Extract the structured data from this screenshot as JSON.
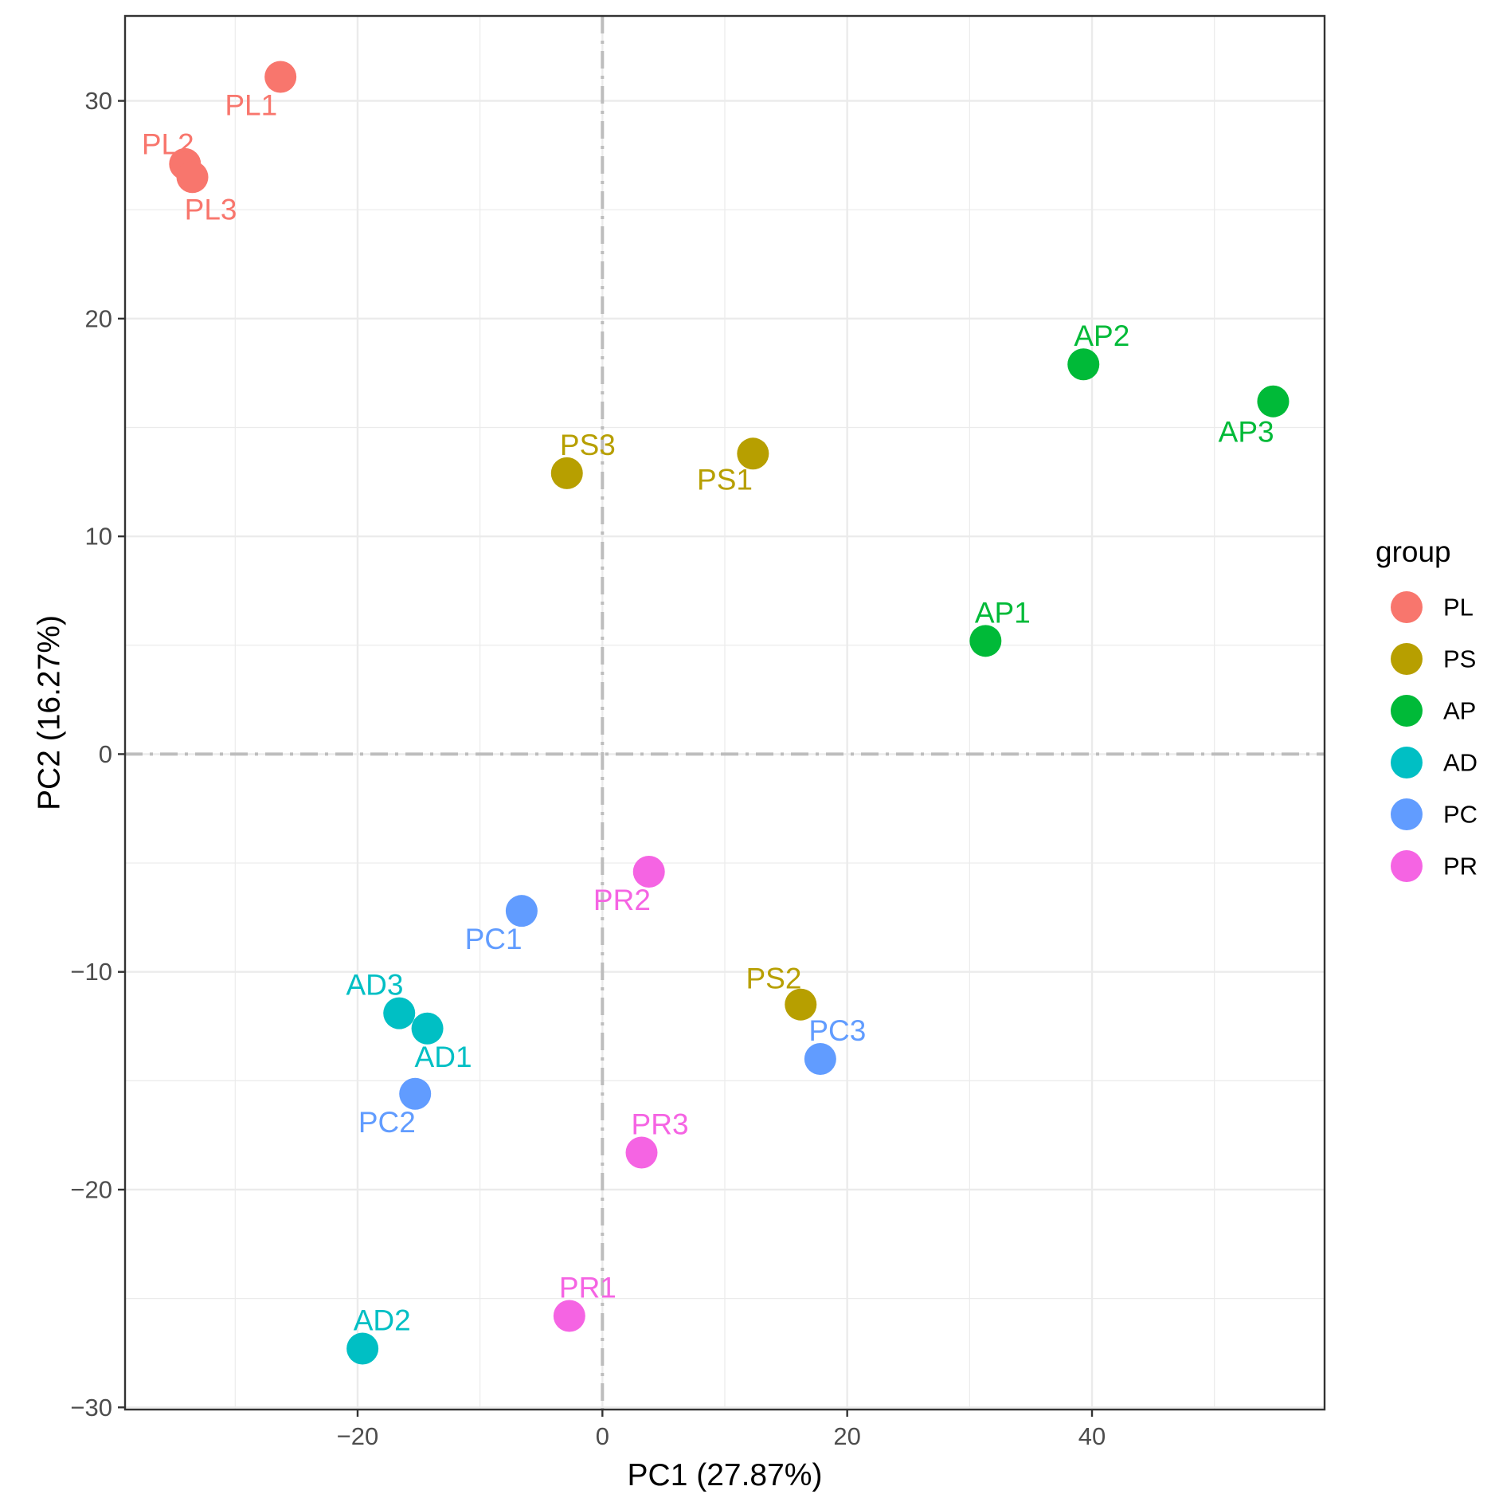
{
  "chart_data": {
    "type": "scatter",
    "title": "",
    "xlabel": "PC1 (27.87%)",
    "ylabel": "PC2 (16.27%)",
    "xlim": [
      -39,
      59
    ],
    "ylim": [
      -30.1,
      33.9
    ],
    "xticks": [
      -20,
      0,
      20,
      40
    ],
    "yticks": [
      -30,
      -20,
      -10,
      0,
      10,
      20,
      30
    ],
    "xtick_labels": [
      "−20",
      "0",
      "20",
      "40"
    ],
    "ytick_labels": [
      "−30",
      "−20",
      "−10",
      "0",
      "10",
      "20",
      "30"
    ],
    "grid": true,
    "reference_lines": [
      "x = 0",
      "y = 0"
    ],
    "legend": {
      "title": "group",
      "position": "right",
      "entries": [
        {
          "name": "PL",
          "color": "#F8766D"
        },
        {
          "name": "PS",
          "color": "#B79F00"
        },
        {
          "name": "AP",
          "color": "#00BA38"
        },
        {
          "name": "AD",
          "color": "#00BFC4"
        },
        {
          "name": "PC",
          "color": "#619CFF"
        },
        {
          "name": "PR",
          "color": "#F564E3"
        }
      ]
    },
    "points": [
      {
        "label": "PL1",
        "group": "PL",
        "x": -26.3,
        "y": 31.1,
        "lx": -28.7,
        "ly": 29.8
      },
      {
        "label": "PL2",
        "group": "PL",
        "x": -34.1,
        "y": 27.1,
        "lx": -35.5,
        "ly": 28.0
      },
      {
        "label": "PL3",
        "group": "PL",
        "x": -33.5,
        "y": 26.5,
        "lx": -32.0,
        "ly": 25.0
      },
      {
        "label": "PS1",
        "group": "PS",
        "x": 12.3,
        "y": 13.8,
        "lx": 10.0,
        "ly": 12.6
      },
      {
        "label": "PS2",
        "group": "PS",
        "x": 16.2,
        "y": -11.5,
        "lx": 14.0,
        "ly": -10.3
      },
      {
        "label": "PS3",
        "group": "PS",
        "x": -2.9,
        "y": 12.9,
        "lx": -1.2,
        "ly": 14.2
      },
      {
        "label": "AP1",
        "group": "AP",
        "x": 31.3,
        "y": 5.2,
        "lx": 32.7,
        "ly": 6.5
      },
      {
        "label": "AP2",
        "group": "AP",
        "x": 39.3,
        "y": 17.9,
        "lx": 40.8,
        "ly": 19.2
      },
      {
        "label": "AP3",
        "group": "AP",
        "x": 54.8,
        "y": 16.2,
        "lx": 52.6,
        "ly": 14.8
      },
      {
        "label": "AD1",
        "group": "AD",
        "x": -14.3,
        "y": -12.6,
        "lx": -13.0,
        "ly": -13.9
      },
      {
        "label": "AD2",
        "group": "AD",
        "x": -19.6,
        "y": -27.3,
        "lx": -18.0,
        "ly": -26.0
      },
      {
        "label": "AD3",
        "group": "AD",
        "x": -16.6,
        "y": -11.9,
        "lx": -18.6,
        "ly": -10.6
      },
      {
        "label": "PC1",
        "group": "PC",
        "x": -6.6,
        "y": -7.2,
        "lx": -8.9,
        "ly": -8.5
      },
      {
        "label": "PC2",
        "group": "PC",
        "x": -15.3,
        "y": -15.6,
        "lx": -17.6,
        "ly": -16.9
      },
      {
        "label": "PC3",
        "group": "PC",
        "x": 17.8,
        "y": -14.0,
        "lx": 19.2,
        "ly": -12.7
      },
      {
        "label": "PR1",
        "group": "PR",
        "x": -2.7,
        "y": -25.8,
        "lx": -1.2,
        "ly": -24.5
      },
      {
        "label": "PR2",
        "group": "PR",
        "x": 3.8,
        "y": -5.4,
        "lx": 1.6,
        "ly": -6.7
      },
      {
        "label": "PR3",
        "group": "PR",
        "x": 3.2,
        "y": -18.3,
        "lx": 4.7,
        "ly": -17.0
      }
    ]
  }
}
